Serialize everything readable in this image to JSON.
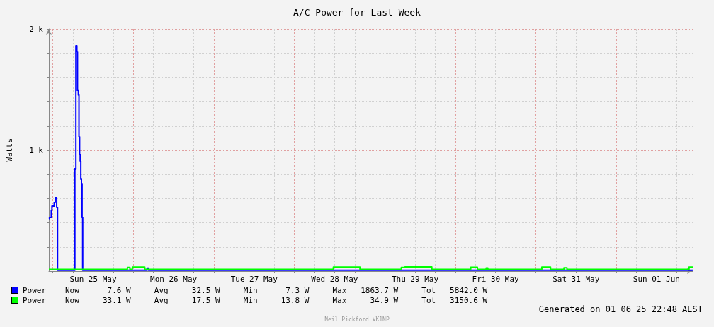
{
  "chart_data": {
    "type": "step",
    "title": "A/C Power for Last Week",
    "ylabel": "Watts",
    "xlim": [
      "--05-24T22:48",
      "--06-01T22:48"
    ],
    "xticks": [
      {
        "value": "--05-25T00:00",
        "label": null
      },
      {
        "value": "--05-25T06:00",
        "label": null
      },
      {
        "value": "--05-25T12:00",
        "label": "Sun 25 May"
      },
      {
        "value": "--05-25T18:00",
        "label": null
      },
      {
        "value": "--05-26T00:00",
        "label": null
      },
      {
        "value": "--05-26T06:00",
        "label": null
      },
      {
        "value": "--05-26T12:00",
        "label": "Mon 26 May"
      },
      {
        "value": "--05-26T18:00",
        "label": null
      },
      {
        "value": "--05-27T00:00",
        "label": null
      },
      {
        "value": "--05-27T06:00",
        "label": null
      },
      {
        "value": "--05-27T12:00",
        "label": "Tue 27 May"
      },
      {
        "value": "--05-27T18:00",
        "label": null
      },
      {
        "value": "--05-28T00:00",
        "label": null
      },
      {
        "value": "--05-28T06:00",
        "label": null
      },
      {
        "value": "--05-28T12:00",
        "label": "Wed 28 May"
      },
      {
        "value": "--05-28T18:00",
        "label": null
      },
      {
        "value": "--05-29T00:00",
        "label": null
      },
      {
        "value": "--05-29T06:00",
        "label": null
      },
      {
        "value": "--05-29T12:00",
        "label": "Thu 29 May"
      },
      {
        "value": "--05-29T18:00",
        "label": null
      },
      {
        "value": "--05-30T00:00",
        "label": null
      },
      {
        "value": "--05-30T06:00",
        "label": null
      },
      {
        "value": "--05-30T12:00",
        "label": "Fri 30 May"
      },
      {
        "value": "--05-30T18:00",
        "label": null
      },
      {
        "value": "--05-31T00:00",
        "label": null
      },
      {
        "value": "--05-31T06:00",
        "label": null
      },
      {
        "value": "--05-31T12:00",
        "label": "Sat 31 May"
      },
      {
        "value": "--05-31T18:00",
        "label": null
      },
      {
        "value": "--06-01T00:00",
        "label": null
      },
      {
        "value": "--06-01T06:00",
        "label": null
      },
      {
        "value": "--06-01T12:00",
        "label": "Sun 01 Jun"
      },
      {
        "value": "--06-01T18:00",
        "label": null
      }
    ],
    "ylim": [
      0,
      2000
    ],
    "yticks": [
      {
        "value": 200,
        "label": null
      },
      {
        "value": 400,
        "label": null
      },
      {
        "value": 600,
        "label": null
      },
      {
        "value": 800,
        "label": null
      },
      {
        "value": 1000,
        "label": "1 k"
      },
      {
        "value": 1200,
        "label": null
      },
      {
        "value": 1400,
        "label": null
      },
      {
        "value": 1600,
        "label": null
      },
      {
        "value": 1800,
        "label": null
      },
      {
        "value": 2000,
        "label": "2 k"
      }
    ],
    "grid": true,
    "legend": "bottom left",
    "marker": "none",
    "series": [
      {
        "name": "Power",
        "color": "#0000ff",
        "x": [
          "--05-24T22:48",
          "--05-24T22:59",
          "--05-24T23:32",
          "--05-24T23:43",
          "--05-25T00:24",
          "--05-25T00:42",
          "--05-25T01:08",
          "--05-25T01:23",
          "--05-25T06:33",
          "--05-25T06:52",
          "--05-25T07:09",
          "--05-25T07:20",
          "--05-25T07:36",
          "--05-25T07:47",
          "--05-25T07:58",
          "--05-25T08:09",
          "--05-25T08:20",
          "--05-25T08:31",
          "--05-25T08:42",
          "--05-25T08:53",
          "--05-26T04:06",
          "--05-26T04:30",
          "--06-01T22:48"
        ],
        "values": [
          430,
          445,
          503,
          538,
          567,
          602,
          526,
          7,
          842,
          1860,
          1813,
          1492,
          1457,
          1111,
          965,
          907,
          760,
          720,
          445,
          7,
          25,
          7,
          8
        ]
      },
      {
        "name": "Power",
        "color": "#00ff00",
        "x": [
          "--05-24T22:48",
          "--05-25T22:13",
          "--05-25T22:58",
          "--05-25T23:42",
          "--05-26T03:24",
          "--05-28T11:38",
          "--05-28T19:34",
          "--05-29T07:54",
          "--05-29T09:00",
          "--05-29T17:00",
          "--05-30T04:36",
          "--05-30T06:36",
          "--05-30T09:12",
          "--05-30T09:42",
          "--05-31T01:48",
          "--05-31T04:24",
          "--05-31T08:24",
          "--05-31T09:18",
          "--06-01T21:42",
          "--06-01T22:48"
        ],
        "values": [
          14,
          30,
          14,
          33,
          14,
          33,
          14,
          30,
          35,
          14,
          32,
          14,
          26,
          14,
          33,
          14,
          28,
          14,
          33,
          33
        ]
      }
    ],
    "annotations": [
      "Now      7.6 W     Avg     32.5 W     Min      7.3 W     Max   1863.7 W     Tot   5842.0 W",
      "Now     33.1 W     Avg     17.5 W     Min     13.8 W     Max     34.9 W     Tot   3150.6 W",
      "Generated on 01 06 25 22:48 AEST",
      "Neil Pickford VK1NP"
    ]
  }
}
